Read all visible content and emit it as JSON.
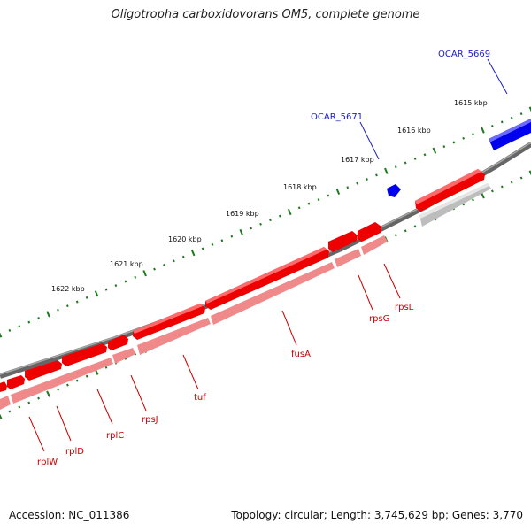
{
  "title": "Oligotropha carboxidovorans OM5, complete genome",
  "footer": {
    "accession": "Accession: NC_011386",
    "topology": "Topology: circular; Length: 3,745,629 bp; Genes: 3,770"
  },
  "colors": {
    "backbone": "#7a7a7a",
    "gene_red": "#ee0000",
    "gene_light_red": "#f08a8a",
    "gene_blue": "#0000ee",
    "gene_gray": "#bdbdbd",
    "tick_green": "#1f7a1f",
    "label_red": "#cc0000",
    "label_blue": "#1a1acc"
  },
  "ruler": {
    "labels": [
      "1615 kbp",
      "1616 kbp",
      "1617 kbp",
      "1618 kbp",
      "1619 kbp",
      "1620 kbp",
      "1621 kbp",
      "1622 kbp"
    ]
  },
  "genes": {
    "red_labels": [
      "rplW",
      "rplD",
      "rplC",
      "rpsJ",
      "tuf",
      "fusA",
      "rpsG",
      "rpsL"
    ],
    "blue_labels": [
      "OCAR_5669",
      "OCAR_5671"
    ]
  }
}
